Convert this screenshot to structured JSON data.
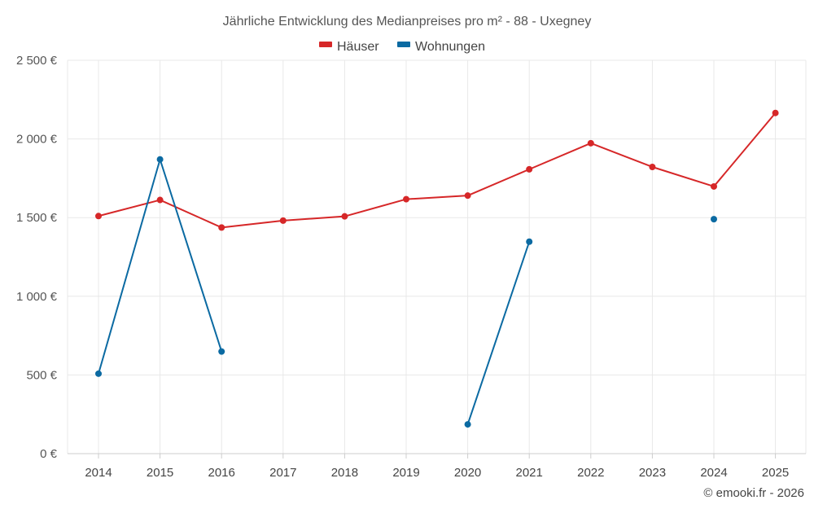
{
  "chart_data": {
    "type": "line",
    "title": "Jährliche Entwicklung des Medianpreises pro m² - 88 - Uxegney",
    "categories": [
      "2014",
      "2015",
      "2016",
      "2017",
      "2018",
      "2019",
      "2020",
      "2021",
      "2022",
      "2023",
      "2024",
      "2025"
    ],
    "ylim": [
      0,
      2500
    ],
    "yticks": [
      0,
      500,
      1000,
      1500,
      2000,
      2500
    ],
    "ytick_labels": [
      "0 €",
      "500 €",
      "1 000 €",
      "1 500 €",
      "2 000 €",
      "2 500 €"
    ],
    "series": [
      {
        "name": "Häuser",
        "color": "#d62728",
        "values": [
          1510,
          1612,
          1437,
          1481,
          1508,
          1617,
          1640,
          1807,
          1973,
          1822,
          1698,
          2165
        ]
      },
      {
        "name": "Wohnungen",
        "color": "#0b6aa2",
        "values": [
          508,
          1870,
          649,
          null,
          null,
          null,
          186,
          1347,
          null,
          null,
          1490,
          null
        ]
      }
    ],
    "xlabel": "",
    "ylabel": "",
    "grid": true,
    "legend_position": "top-center"
  },
  "credit": "© emooki.fr - 2026"
}
